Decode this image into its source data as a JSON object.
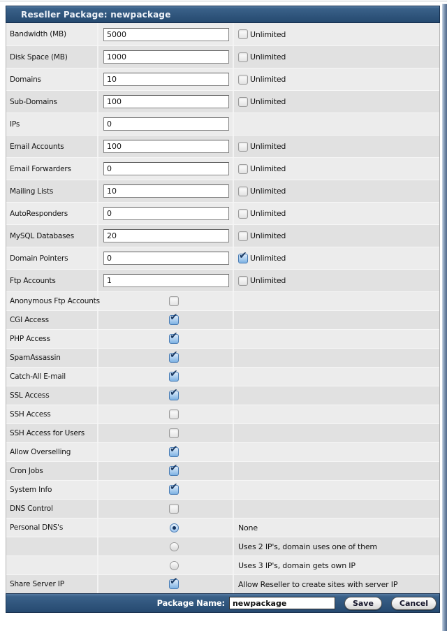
{
  "window": {
    "title": "Reseller Package: newpackage"
  },
  "labels": {
    "unlimited": "Unlimited"
  },
  "colors": {
    "bar_navy": "#2f547b",
    "row_light": "#ececec",
    "row_dark": "#e1e1e1",
    "aqua_checkbox_blue": "#7db1e2",
    "check_mark_navy": "#1b3a63"
  },
  "rows": [
    {
      "label": "Bandwidth (MB)",
      "input": "5000",
      "unlimited": false
    },
    {
      "label": "Disk Space (MB)",
      "input": "1000",
      "unlimited": false
    },
    {
      "label": "Domains",
      "input": "10",
      "unlimited": false
    },
    {
      "label": "Sub-Domains",
      "input": "100",
      "unlimited": false
    },
    {
      "label": "IPs",
      "input": "0"
    },
    {
      "label": "Email Accounts",
      "input": "100",
      "unlimited": false
    },
    {
      "label": "Email Forwarders",
      "input": "0",
      "unlimited": false
    },
    {
      "label": "Mailing Lists",
      "input": "10",
      "unlimited": false
    },
    {
      "label": "AutoResponders",
      "input": "0",
      "unlimited": false
    },
    {
      "label": "MySQL Databases",
      "input": "20",
      "unlimited": false
    },
    {
      "label": "Domain Pointers",
      "input": "0",
      "unlimited": true
    },
    {
      "label": "Ftp Accounts",
      "input": "1",
      "unlimited": false
    },
    {
      "label": "Anonymous Ftp Accounts",
      "checkbox": false
    },
    {
      "label": "CGI Access",
      "checkbox": true
    },
    {
      "label": "PHP Access",
      "checkbox": true
    },
    {
      "label": "SpamAssassin",
      "checkbox": true
    },
    {
      "label": "Catch-All E-mail",
      "checkbox": true
    },
    {
      "label": "SSL Access",
      "checkbox": true
    },
    {
      "label": "SSH Access",
      "checkbox": false
    },
    {
      "label": "SSH Access for Users",
      "checkbox": false
    },
    {
      "label": "Allow Overselling",
      "checkbox": true
    },
    {
      "label": "Cron Jobs",
      "checkbox": true
    },
    {
      "label": "System Info",
      "checkbox": true
    },
    {
      "label": "DNS Control",
      "checkbox": false
    },
    {
      "label": "Personal DNS's",
      "radio": true,
      "caption": "None"
    },
    {
      "label": "",
      "radio": false,
      "caption": "Uses 2 IP's, domain uses one of them"
    },
    {
      "label": "",
      "radio": false,
      "caption": "Uses 3 IP's, domain gets own IP"
    },
    {
      "label": "Share Server IP",
      "checkbox": true,
      "caption": "Allow Reseller to create sites with server IP"
    }
  ],
  "footer": {
    "package_name_label": "Package Name:",
    "package_name_value": "newpackage",
    "save_label": "Save",
    "cancel_label": "Cancel"
  }
}
